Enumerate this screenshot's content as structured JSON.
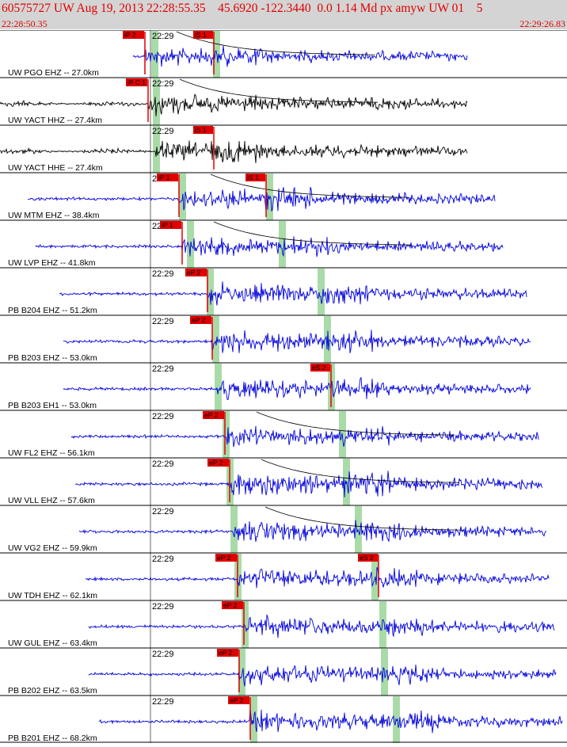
{
  "header": {
    "title": "60575727 UW Aug 19, 2013 22:28:55.35    45.6920 -122.3440  0.0 1.14 Md px amyw UW 01    5",
    "start_time": "22:28:50.35",
    "end_time": "22:29:26.83"
  },
  "colors": {
    "header_bg": "#d4d4d4",
    "header_text": "#e00000",
    "trace_blue": "#0000dd",
    "trace_black": "#000000",
    "pick_red": "#e00000",
    "window_green": "#a9dba9"
  },
  "minute_label": "22:29",
  "traces": [
    {
      "label": "UW PGO EHZ -- 27.0km",
      "color": "blue",
      "pick_label": "iP 2",
      "pick_x": 183,
      "pick_tag": "",
      "s_label": "iS 1",
      "s_x": 270,
      "s_tag": "",
      "green": [
        195,
        273
      ],
      "signal": [
        168,
        590
      ],
      "amp": 0.45,
      "coda": true
    },
    {
      "label": "UW YACT HHZ -- 27.4km",
      "color": "black",
      "pick_label": "iP C 1",
      "pick_x": 187,
      "pick_tag": "",
      "s_label": "",
      "s_x": 0,
      "s_tag": "",
      "green": [
        197
      ],
      "signal": [
        0,
        590
      ],
      "amp": 0.55,
      "coda": true
    },
    {
      "label": "UW YACT HHE -- 27.4km",
      "color": "black",
      "pick_label": "",
      "pick_x": 0,
      "pick_tag": "",
      "s_label": "iS 1",
      "s_x": 270,
      "s_tag": "",
      "green": [
        197
      ],
      "signal": [
        0,
        590
      ],
      "amp": 0.5,
      "coda": false
    },
    {
      "label": "UW MTM EHZ -- 38.4km",
      "color": "blue",
      "pick_label": "iP 1",
      "pick_x": 226,
      "pick_tag": "",
      "s_label": "iS 1",
      "s_x": 336,
      "s_tag": "",
      "green": [
        230,
        340
      ],
      "signal": [
        35,
        625
      ],
      "amp": 0.55,
      "coda": true
    },
    {
      "label": "UW LVP EHZ -- 41.8km",
      "color": "blue",
      "pick_label": "iP 1",
      "pick_x": 230,
      "pick_tag": "",
      "s_label": "",
      "s_x": 0,
      "s_tag": "",
      "green": [
        240,
        356
      ],
      "signal": [
        45,
        635
      ],
      "amp": 0.45,
      "coda": true
    },
    {
      "label": "PB B204 EHZ -- 51.2km",
      "color": "blue",
      "pick_label": "eP 2",
      "pick_x": 262,
      "pick_tag": "",
      "s_label": "",
      "s_x": 0,
      "s_tag": "",
      "green": [
        265,
        405
      ],
      "signal": [
        75,
        665
      ],
      "amp": 0.55,
      "coda": false
    },
    {
      "label": "PB B203 EHZ -- 53.0km",
      "color": "blue",
      "pick_label": "eP 2",
      "pick_x": 268,
      "pick_tag": "",
      "s_label": "",
      "s_x": 0,
      "s_tag": "",
      "green": [
        272,
        413
      ],
      "signal": [
        80,
        670
      ],
      "amp": 0.55,
      "coda": false
    },
    {
      "label": "PB B203 EH1 -- 53.0km",
      "color": "blue",
      "pick_label": "",
      "pick_x": 0,
      "pick_tag": "",
      "s_label": "eS 2",
      "s_x": 418,
      "s_tag": "",
      "green": [
        275,
        418
      ],
      "signal": [
        80,
        670
      ],
      "amp": 0.5,
      "coda": false
    },
    {
      "label": "UW FL2 EHZ -- 56.1km",
      "color": "blue",
      "pick_label": "eP 2",
      "pick_x": 284,
      "pick_tag": "",
      "s_label": "",
      "s_x": 0,
      "s_tag": "",
      "green": [
        285,
        432
      ],
      "signal": [
        90,
        680
      ],
      "amp": 0.45,
      "coda": true
    },
    {
      "label": "UW VLL EHZ -- 57.6km",
      "color": "blue",
      "pick_label": "eP 2",
      "pick_x": 290,
      "pick_tag": "",
      "s_label": "",
      "s_x": 0,
      "s_tag": "",
      "green": [
        290,
        437
      ],
      "signal": [
        95,
        685
      ],
      "amp": 0.65,
      "coda": true
    },
    {
      "label": "UW VG2 EHZ -- 59.9km",
      "color": "blue",
      "pick_label": "",
      "pick_x": 0,
      "pick_tag": "",
      "s_label": "",
      "s_x": 0,
      "s_tag": "",
      "green": [
        295,
        452
      ],
      "signal": [
        100,
        690
      ],
      "amp": 0.5,
      "coda": true
    },
    {
      "label": "UW TDH EHZ -- 62.1km",
      "color": "blue",
      "pick_label": "eP 2",
      "pick_x": 300,
      "pick_tag": "",
      "s_label": "eS 2",
      "s_x": 478,
      "s_tag": "",
      "green": [
        300,
        473
      ],
      "signal": [
        108,
        693
      ],
      "amp": 0.55,
      "coda": false
    },
    {
      "label": "UW GUL EHZ -- 63.4km",
      "color": "blue",
      "pick_label": "eP 2",
      "pick_x": 308,
      "pick_tag": "",
      "s_label": "",
      "s_x": 0,
      "s_tag": "",
      "green": [
        309,
        483
      ],
      "signal": [
        112,
        700
      ],
      "amp": 0.55,
      "coda": false
    },
    {
      "label": "PB B202 EHZ -- 63.5km",
      "color": "blue",
      "pick_label": "eP 2",
      "pick_x": 302,
      "pick_tag": "",
      "s_label": "",
      "s_x": 0,
      "s_tag": "",
      "green": [
        305,
        485
      ],
      "signal": [
        112,
        702
      ],
      "amp": 0.5,
      "coda": false
    },
    {
      "label": "PB B201 EHZ -- 68.2km",
      "color": "blue",
      "pick_label": "eP 2",
      "pick_x": 316,
      "pick_tag": "",
      "s_label": "",
      "s_x": 0,
      "s_tag": "",
      "green": [
        320,
        500
      ],
      "signal": [
        125,
        710
      ],
      "amp": 0.55,
      "coda": false
    }
  ]
}
